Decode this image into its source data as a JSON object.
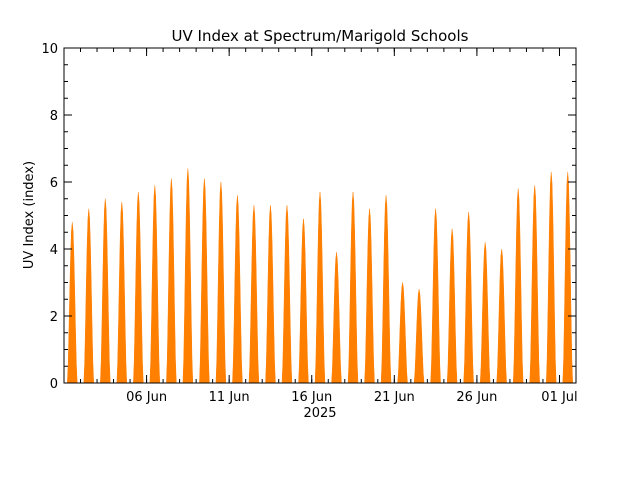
{
  "chart_data": {
    "type": "area",
    "title": "UV Index at Spectrum/Marigold Schools",
    "ylabel": "UV Index (index)",
    "xlabel": "2025",
    "ylim": [
      0,
      10
    ],
    "y_ticks": [
      "0",
      "2",
      "4",
      "6",
      "8",
      "10"
    ],
    "x_ticks": [
      {
        "date": "2025-06-06",
        "label": "06 Jun"
      },
      {
        "date": "2025-06-11",
        "label": "11 Jun"
      },
      {
        "date": "2025-06-16",
        "label": "16 Jun"
      },
      {
        "date": "2025-06-21",
        "label": "21 Jun"
      },
      {
        "date": "2025-06-26",
        "label": "26 Jun"
      },
      {
        "date": "2025-07-01",
        "label": "01 Jul"
      }
    ],
    "xlim": [
      "2025-06-01",
      "2025-07-02"
    ],
    "series_color": "#ff7f00",
    "series": [
      {
        "values": [
          {
            "date": "2025-06-01",
            "peak": 4.8
          },
          {
            "date": "2025-06-02",
            "peak": 5.2
          },
          {
            "date": "2025-06-03",
            "peak": 5.5
          },
          {
            "date": "2025-06-04",
            "peak": 5.4
          },
          {
            "date": "2025-06-05",
            "peak": 5.7
          },
          {
            "date": "2025-06-06",
            "peak": 5.9
          },
          {
            "date": "2025-06-07",
            "peak": 6.1
          },
          {
            "date": "2025-06-08",
            "peak": 6.4
          },
          {
            "date": "2025-06-09",
            "peak": 6.1
          },
          {
            "date": "2025-06-10",
            "peak": 6.0
          },
          {
            "date": "2025-06-11",
            "peak": 5.6
          },
          {
            "date": "2025-06-12",
            "peak": 5.3
          },
          {
            "date": "2025-06-13",
            "peak": 5.3
          },
          {
            "date": "2025-06-14",
            "peak": 5.3
          },
          {
            "date": "2025-06-15",
            "peak": 4.9
          },
          {
            "date": "2025-06-16",
            "peak": 5.7
          },
          {
            "date": "2025-06-17",
            "peak": 3.9
          },
          {
            "date": "2025-06-18",
            "peak": 5.7
          },
          {
            "date": "2025-06-19",
            "peak": 5.2
          },
          {
            "date": "2025-06-20",
            "peak": 5.6
          },
          {
            "date": "2025-06-21",
            "peak": 3.0
          },
          {
            "date": "2025-06-22",
            "peak": 2.8
          },
          {
            "date": "2025-06-23",
            "peak": 5.2
          },
          {
            "date": "2025-06-24",
            "peak": 4.6
          },
          {
            "date": "2025-06-25",
            "peak": 5.1
          },
          {
            "date": "2025-06-26",
            "peak": 4.2
          },
          {
            "date": "2025-06-27",
            "peak": 4.0
          },
          {
            "date": "2025-06-28",
            "peak": 5.8
          },
          {
            "date": "2025-06-29",
            "peak": 5.9
          },
          {
            "date": "2025-06-30",
            "peak": 6.3
          },
          {
            "date": "2025-07-01",
            "peak": 6.3
          }
        ]
      }
    ]
  }
}
